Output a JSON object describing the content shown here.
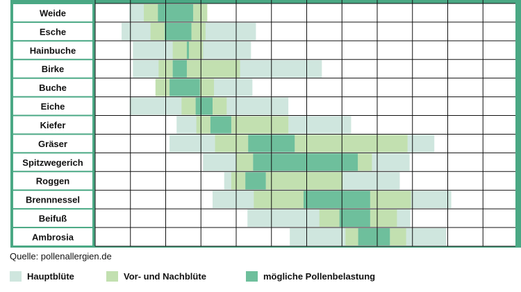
{
  "chart_data": {
    "type": "gantt",
    "subtype": "pollen-calendar",
    "source": "Quelle: pollenallergien.de",
    "legend": [
      {
        "key": "main",
        "label": "Hauptblüte",
        "color": "#cfe6de"
      },
      {
        "key": "prepost",
        "label": "Vor- und Nachblüte",
        "color": "#c2e0b0"
      },
      {
        "key": "load",
        "label": "mögliche Pollenbelastung",
        "color": "#6ebf9c"
      }
    ],
    "colors": {
      "frame": "#4aa884",
      "grid": "#111111",
      "cell_background": "#ffffff",
      "label_background": "#ffffff"
    },
    "x_unit": "month",
    "x_range": [
      0,
      12
    ],
    "grid_columns": 12,
    "rows": [
      {
        "name": "Weide",
        "main": [
          [
            0.97,
            2.87
          ]
        ],
        "prepost": [
          [
            1.38,
            1.78
          ],
          [
            2.78,
            3.18
          ]
        ],
        "load": [
          [
            1.78,
            2.78
          ]
        ]
      },
      {
        "name": "Esche",
        "main": [
          [
            0.75,
            4.56
          ]
        ],
        "prepost": [
          [
            1.57,
            1.97
          ],
          [
            2.73,
            3.13
          ]
        ],
        "load": [
          [
            1.97,
            2.73
          ]
        ]
      },
      {
        "name": "Hainbuche",
        "main": [
          [
            1.07,
            4.42
          ]
        ],
        "prepost": [
          [
            2.2,
            2.6
          ],
          [
            2.66,
            3.06
          ]
        ],
        "load": [
          [
            2.6,
            2.66
          ]
        ]
      },
      {
        "name": "Birke",
        "main": [
          [
            1.07,
            6.43
          ]
        ],
        "prepost": [
          [
            1.8,
            2.2
          ],
          [
            2.6,
            4.11
          ]
        ],
        "load": [
          [
            2.2,
            2.6
          ]
        ]
      },
      {
        "name": "Buche",
        "main": [
          [
            2.31,
            4.46
          ]
        ],
        "prepost": [
          [
            1.71,
            2.11
          ],
          [
            2.97,
            3.37
          ]
        ],
        "load": [
          [
            2.11,
            2.97
          ]
        ]
      },
      {
        "name": "Eiche",
        "main": [
          [
            0.98,
            5.48
          ]
        ],
        "prepost": [
          [
            2.45,
            2.85
          ],
          [
            3.33,
            3.73
          ]
        ],
        "load": [
          [
            2.85,
            3.33
          ]
        ]
      },
      {
        "name": "Kiefer",
        "main": [
          [
            2.31,
            7.26
          ]
        ],
        "prepost": [
          [
            2.87,
            3.27
          ],
          [
            3.86,
            5.48
          ]
        ],
        "load": [
          [
            3.27,
            3.86
          ]
        ]
      },
      {
        "name": "Gräser",
        "main": [
          [
            2.11,
            9.62
          ]
        ],
        "prepost": [
          [
            3.4,
            4.34
          ],
          [
            5.66,
            8.86
          ]
        ],
        "load": [
          [
            4.34,
            5.66
          ]
        ]
      },
      {
        "name": "Spitzwegerich",
        "main": [
          [
            3.06,
            8.92
          ]
        ],
        "prepost": [
          [
            4.0,
            4.48
          ],
          [
            7.45,
            7.85
          ]
        ],
        "load": [
          [
            4.48,
            7.45
          ]
        ]
      },
      {
        "name": "Roggen",
        "main": [
          [
            3.66,
            8.64
          ]
        ],
        "prepost": [
          [
            3.86,
            4.26
          ],
          [
            4.84,
            7.02
          ]
        ],
        "load": [
          [
            4.26,
            4.84
          ]
        ]
      },
      {
        "name": "Brennnessel",
        "main": [
          [
            3.33,
            10.1
          ]
        ],
        "prepost": [
          [
            4.5,
            5.91
          ],
          [
            7.8,
            8.96
          ]
        ],
        "load": [
          [
            5.91,
            7.8
          ]
        ]
      },
      {
        "name": "Beifuß",
        "main": [
          [
            4.32,
            8.94
          ]
        ],
        "prepost": [
          [
            6.36,
            6.93
          ],
          [
            7.8,
            8.56
          ]
        ],
        "load": [
          [
            6.93,
            7.8
          ]
        ]
      },
      {
        "name": "Ambrosia",
        "main": [
          [
            5.52,
            9.96
          ]
        ],
        "prepost": [
          [
            7.1,
            7.46
          ],
          [
            8.36,
            8.82
          ]
        ],
        "load": [
          [
            7.46,
            8.36
          ]
        ]
      }
    ]
  }
}
